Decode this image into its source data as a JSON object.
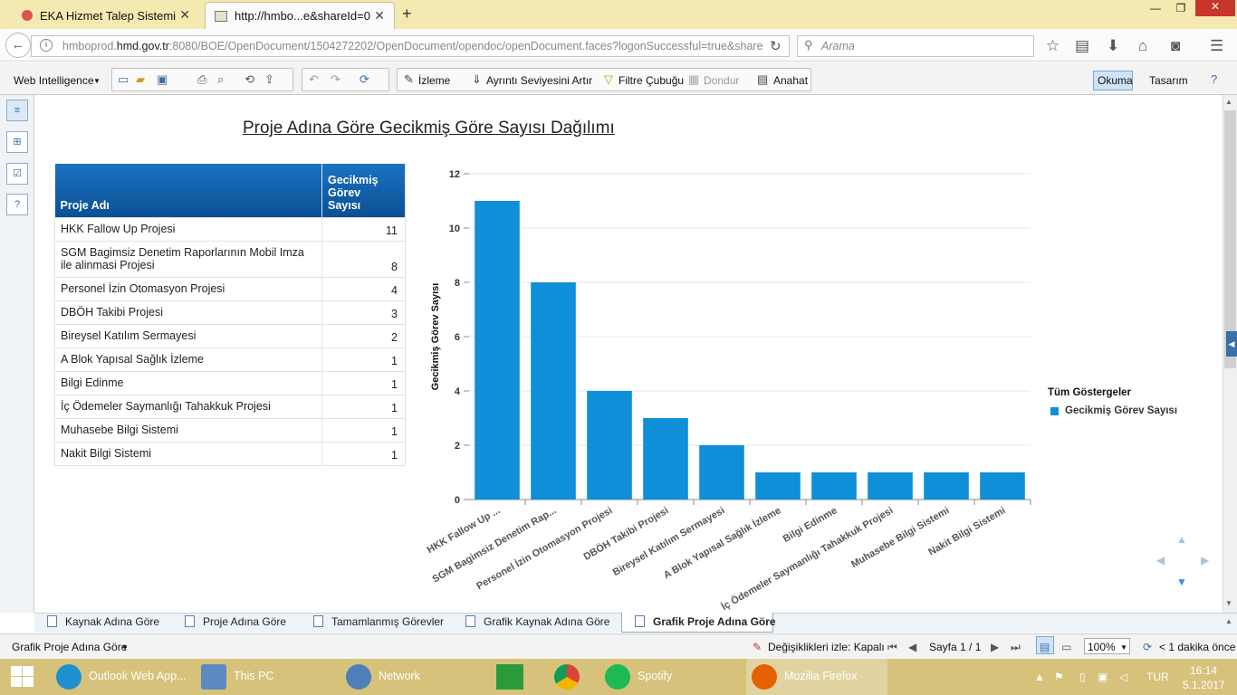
{
  "browser": {
    "tabs": [
      {
        "label": "EKA Hizmet Talep Sistemi"
      },
      {
        "label": "http://hmbo...e&shareId=0"
      }
    ],
    "url_prefix": "hmboprod.",
    "url_host": "hmd.gov.tr",
    "url_rest": ":8080/BOE/OpenDocument/1504272202/OpenDocument/opendoc/openDocument.faces?logonSuccessful=true&share",
    "search_placeholder": "Arama"
  },
  "toolbar": {
    "app_menu": "Web Intelligence",
    "izleme": "İzleme",
    "ayrinti": "Ayrıntı Seviyesini Artır",
    "filtre": "Filtre Çubuğu",
    "dondur": "Dondur",
    "anahat": "Anahat",
    "okuma": "Okuma",
    "tasarim": "Tasarım"
  },
  "report": {
    "title": "Proje Adına Göre Gecikmiş Göre Sayısı Dağılımı",
    "table": {
      "col1": "Proje Adı",
      "col2_l1": "Gecikmiş",
      "col2_l2": "Görev",
      "col2_l3": "Sayısı",
      "rows": [
        {
          "name": "HKK Fallow Up Projesi",
          "value": "11"
        },
        {
          "name": "SGM Bagimsiz Denetim Raporlarının Mobil Imza ile alinmasi Projesi",
          "value": "8"
        },
        {
          "name": "Personel İzin Otomasyon Projesi",
          "value": "4"
        },
        {
          "name": "DBÖH Takibi Projesi",
          "value": "3"
        },
        {
          "name": "Bireysel Katılım Sermayesi",
          "value": "2"
        },
        {
          "name": "A Blok Yapısal Sağlık İzleme",
          "value": "1"
        },
        {
          "name": "Bilgi Edinme",
          "value": "1"
        },
        {
          "name": "İç Ödemeler Saymanlığı Tahakkuk Projesi",
          "value": "1"
        },
        {
          "name": "Muhasebe Bilgi Sistemi",
          "value": "1"
        },
        {
          "name": "Nakit Bilgi Sistemi",
          "value": "1"
        }
      ]
    },
    "legend_title": "Tüm Göstergeler",
    "legend_item": "Gecikmiş Görev Sayısı"
  },
  "chart_data": {
    "type": "bar",
    "title": "",
    "ylabel": "Gecikmiş Görev Sayısı",
    "xlabel": "",
    "ylim": [
      0,
      12
    ],
    "yticks": [
      0,
      2,
      4,
      6,
      8,
      10,
      12
    ],
    "categories": [
      "HKK Fallow Up ...",
      "SGM Bagimsiz Denetim Rap...",
      "Personel İzin Otomasyon Projesi",
      "DBÖH Takibi Projesi",
      "Bireysel Katılım Sermayesi",
      "A Blok Yapısal Sağlık İzleme",
      "Bilgi Edinme",
      "İç Ödemeler Saymanlığı Tahakkuk Projesi",
      "Muhasebe Bilgi Sistemi",
      "Nakit Bilgi Sistemi"
    ],
    "series": [
      {
        "name": "Gecikmiş Görev Sayısı",
        "values": [
          11,
          8,
          4,
          3,
          2,
          1,
          1,
          1,
          1,
          1
        ]
      }
    ],
    "bar_color": "#0e8fd8",
    "grid": true,
    "legend_position": "right"
  },
  "sheets": [
    "Kaynak Adına Göre",
    "Proje Adına Göre",
    "Tamamlanmış Görevler",
    "Grafik Kaynak Adına Göre",
    "Grafik Proje Adına Göre"
  ],
  "status": {
    "current_sheet": "Grafik Proje Adına Göre",
    "track": "Değişiklikleri izle: Kapalı",
    "page": "Sayfa 1 / 1",
    "zoom": "100%",
    "refresh": "< 1 dakika önce"
  },
  "taskbar": {
    "apps": [
      "Outlook Web App...",
      "This PC",
      "Network",
      "Spotify",
      "Mozilla Firefox"
    ],
    "lang": "TUR",
    "time": "16:14",
    "date": "5.1.2017"
  }
}
